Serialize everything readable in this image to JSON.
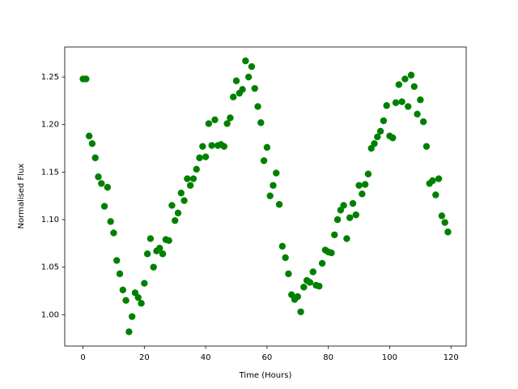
{
  "chart_data": {
    "type": "scatter",
    "x_label": "Time (Hours)",
    "y_label": "Normalised Flux",
    "color": "#008000",
    "xlim": [
      -5.95,
      124.95
    ],
    "xticks": [
      0,
      20,
      40,
      60,
      80,
      100,
      120
    ],
    "ylim": [
      0.967,
      1.2816
    ],
    "yticks": [
      {
        "value": 1.0,
        "label": "1.00"
      },
      1.05,
      {
        "value": 1.1,
        "label": "1.10"
      },
      1.15,
      {
        "value": 1.2,
        "label": "1.20"
      },
      1.25
    ],
    "x": [
      0,
      1,
      2,
      3,
      4,
      5,
      6,
      7,
      8,
      9,
      10,
      11,
      12,
      13,
      14,
      15,
      16,
      17,
      18,
      19,
      20,
      21,
      22,
      23,
      24,
      25,
      26,
      27,
      28,
      29,
      30,
      31,
      32,
      33,
      34,
      35,
      36,
      37,
      38,
      39,
      40,
      41,
      42,
      43,
      44,
      45,
      46,
      47,
      48,
      49,
      50,
      51,
      52,
      53,
      54,
      55,
      56,
      57,
      58,
      59,
      60,
      61,
      62,
      63,
      64,
      65,
      66,
      67,
      68,
      69,
      70,
      71,
      72,
      73,
      74,
      75,
      76,
      77,
      78,
      79,
      80,
      81,
      82,
      83,
      84,
      85,
      86,
      87,
      88,
      89,
      90,
      91,
      92,
      93,
      94,
      95,
      96,
      97,
      98,
      99,
      100,
      101,
      102,
      103,
      104,
      105,
      106,
      107,
      108,
      109,
      110,
      111,
      112,
      113,
      114,
      115,
      116,
      117,
      118,
      119
    ],
    "values": [
      1.248,
      1.248,
      1.188,
      1.18,
      1.165,
      1.145,
      1.138,
      1.114,
      1.134,
      1.098,
      1.086,
      1.057,
      1.043,
      1.026,
      1.015,
      0.982,
      0.998,
      1.023,
      1.018,
      1.012,
      1.033,
      1.064,
      1.08,
      1.05,
      1.067,
      1.07,
      1.064,
      1.079,
      1.078,
      1.115,
      1.099,
      1.107,
      1.128,
      1.12,
      1.143,
      1.136,
      1.143,
      1.153,
      1.165,
      1.177,
      1.166,
      1.201,
      1.178,
      1.205,
      1.178,
      1.179,
      1.177,
      1.201,
      1.207,
      1.229,
      1.246,
      1.233,
      1.237,
      1.267,
      1.25,
      1.261,
      1.238,
      1.219,
      1.202,
      1.162,
      1.176,
      1.125,
      1.136,
      1.149,
      1.116,
      1.072,
      1.06,
      1.043,
      1.021,
      1.016,
      1.019,
      1.003,
      1.029,
      1.036,
      1.034,
      1.045,
      1.031,
      1.03,
      1.054,
      1.068,
      1.066,
      1.065,
      1.084,
      1.1,
      1.11,
      1.115,
      1.08,
      1.102,
      1.117,
      1.105,
      1.136,
      1.127,
      1.137,
      1.148,
      1.175,
      1.18,
      1.187,
      1.193,
      1.204,
      1.22,
      1.188,
      1.186,
      1.223,
      1.242,
      1.224,
      1.248,
      1.219,
      1.252,
      1.24,
      1.211,
      1.226,
      1.203,
      1.177,
      1.138,
      1.141,
      1.126,
      1.143,
      1.104,
      1.097,
      1.087
    ]
  }
}
